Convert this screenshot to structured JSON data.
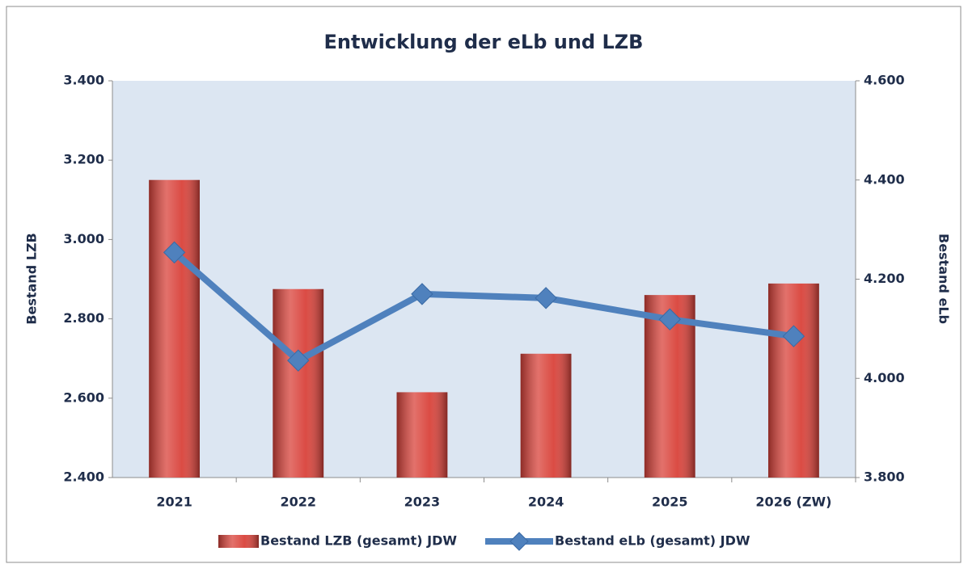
{
  "chart_data": {
    "type": "bar-line",
    "title": "Entwicklung der eLb und LZB",
    "ylabel": "Bestand LZB",
    "y2label": "Bestand eLb",
    "categories": [
      "2021",
      "2022",
      "2023",
      "2024",
      "2025",
      "2026 (ZW)"
    ],
    "series": [
      {
        "name": "Bestand LZB (gesamt) JDW",
        "type": "bar",
        "color": "#d9423a",
        "values": [
          3150,
          2875,
          2615,
          2712,
          2860,
          2889
        ]
      },
      {
        "name": "Bestand eLb (gesamt) JDW",
        "type": "line",
        "axis": "y2",
        "color": "#4f81bd",
        "values": [
          4254,
          4036,
          4170,
          4162,
          4119,
          4085
        ]
      }
    ],
    "ylim": [
      2400,
      3400
    ],
    "yticks": [
      {
        "value": 2400,
        "label": "2.400"
      },
      {
        "value": 2600,
        "label": "2.600"
      },
      {
        "value": 2800,
        "label": "2.800"
      },
      {
        "value": 3000,
        "label": "3.000"
      },
      {
        "value": 3200,
        "label": "3.200"
      },
      {
        "value": 3400,
        "label": "3.400"
      }
    ],
    "y2lim": [
      3800,
      4600
    ],
    "y2ticks": [
      {
        "value": 3800,
        "label": "3.800"
      },
      {
        "value": 4000,
        "label": "4.000"
      },
      {
        "value": 4200,
        "label": "4.200"
      },
      {
        "value": 4400,
        "label": "4.400"
      },
      {
        "value": 4600,
        "label": "4.600"
      }
    ],
    "grid": false,
    "legend": "bottom"
  }
}
